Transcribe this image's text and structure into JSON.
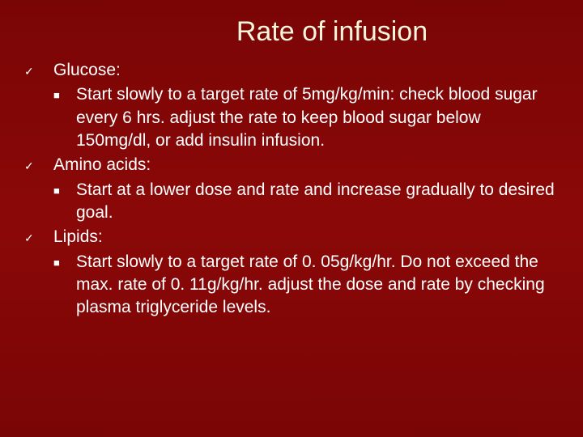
{
  "slide": {
    "title": "Rate of infusion",
    "background_color": "#8b0808",
    "title_color": "#f5f5dc",
    "text_color": "#ffffff",
    "title_fontsize": 34,
    "body_fontsize": 21,
    "bullets": [
      {
        "label": "Glucose:",
        "sub": "Start slowly to a target rate of 5mg/kg/min: check blood sugar every 6 hrs. adjust the rate to keep blood sugar below 150mg/dl, or add insulin infusion."
      },
      {
        "label": "Amino acids:",
        "sub": "Start at a lower dose and rate and increase gradually to desired goal."
      },
      {
        "label": "Lipids:",
        "sub": "Start slowly to a target rate of 0. 05g/kg/hr. Do not exceed the max. rate of  0. 11g/kg/hr. adjust the dose and rate by checking plasma triglyceride levels."
      }
    ]
  }
}
